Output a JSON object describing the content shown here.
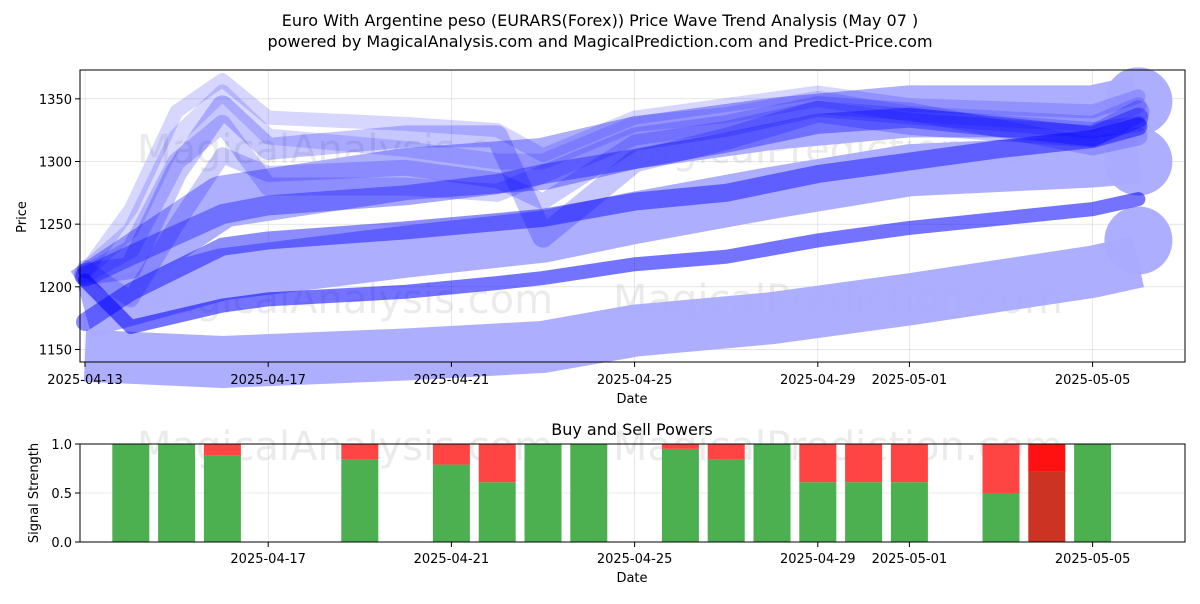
{
  "figure": {
    "title_line1": "Euro With Argentine peso (EURARS(Forex)) Price Wave Trend Analysis (May 07 )",
    "title_line2": "powered by MagicalAnalysis.com and MagicalPrediction.com and Predict-Price.com",
    "watermarks": [
      "MagicalAnalysis.com",
      "MagicalPrediction.com"
    ]
  },
  "chart_data": [
    {
      "type": "line",
      "title": "",
      "xlabel": "Date",
      "ylabel": "Price",
      "x_start": "2025-04-13",
      "xlim": [
        "2025-04-13",
        "2025-05-07"
      ],
      "ylim": [
        1140,
        1373
      ],
      "xticks": [
        "2025-04-13",
        "2025-04-17",
        "2025-04-21",
        "2025-04-25",
        "2025-04-29",
        "2025-05-01",
        "2025-05-05"
      ],
      "yticks": [
        1150,
        1200,
        1250,
        1300,
        1350
      ],
      "grid": true,
      "band_color": "#aaaaff",
      "wave_color": "#0000ff",
      "bands": [
        {
          "x": [
            "2025-04-13",
            "2025-04-16",
            "2025-04-20",
            "2025-04-23",
            "2025-04-25",
            "2025-04-28",
            "2025-05-01",
            "2025-05-05",
            "2025-05-06"
          ],
          "values": [
            1145,
            1140,
            1146,
            1152,
            1165,
            1175,
            1190,
            1212,
            1220
          ],
          "end_value": 1237
        },
        {
          "x": [
            "2025-04-13",
            "2025-04-16",
            "2025-04-20",
            "2025-04-23",
            "2025-04-25",
            "2025-04-28",
            "2025-05-01",
            "2025-05-05",
            "2025-05-06"
          ],
          "values": [
            1180,
            1210,
            1228,
            1240,
            1255,
            1275,
            1293,
            1300,
            1303
          ],
          "end_value": 1300
        },
        {
          "x": [
            "2025-04-13",
            "2025-04-16",
            "2025-04-20",
            "2025-04-23",
            "2025-04-25",
            "2025-04-28",
            "2025-05-01",
            "2025-05-05",
            "2025-05-06"
          ],
          "values": [
            1195,
            1268,
            1290,
            1298,
            1315,
            1330,
            1340,
            1340,
            1348
          ],
          "end_value": 1348
        }
      ],
      "series": [
        {
          "x": [
            "2025-04-13",
            "2025-04-14",
            "2025-04-16",
            "2025-04-17",
            "2025-04-20",
            "2025-04-22",
            "2025-04-23",
            "2025-04-25",
            "2025-04-27",
            "2025-04-29",
            "2025-05-01",
            "2025-05-05",
            "2025-05-06"
          ],
          "values": [
            1205,
            1168,
            1185,
            1190,
            1196,
            1203,
            1207,
            1218,
            1224,
            1237,
            1247,
            1262,
            1270
          ]
        },
        {
          "x": [
            "2025-04-13",
            "2025-04-14",
            "2025-04-16",
            "2025-04-17",
            "2025-04-20",
            "2025-04-23",
            "2025-04-25",
            "2025-04-27",
            "2025-04-29",
            "2025-05-01",
            "2025-05-03",
            "2025-05-05",
            "2025-05-06"
          ],
          "values": [
            1172,
            1196,
            1232,
            1237,
            1245,
            1255,
            1268,
            1275,
            1290,
            1300,
            1310,
            1318,
            1328
          ]
        },
        {
          "x": [
            "2025-04-13",
            "2025-04-14",
            "2025-04-16",
            "2025-04-17",
            "2025-04-20",
            "2025-04-22",
            "2025-04-23",
            "2025-04-25",
            "2025-04-27",
            "2025-04-29",
            "2025-05-01",
            "2025-05-05",
            "2025-05-06"
          ],
          "values": [
            1208,
            1225,
            1258,
            1265,
            1273,
            1282,
            1290,
            1302,
            1315,
            1330,
            1335,
            1320,
            1335
          ]
        },
        {
          "x": [
            "2025-04-13",
            "2025-04-14",
            "2025-04-15",
            "2025-04-16",
            "2025-04-17",
            "2025-04-20",
            "2025-04-22",
            "2025-04-23",
            "2025-04-25",
            "2025-04-27",
            "2025-04-29",
            "2025-05-01",
            "2025-05-05",
            "2025-05-06"
          ],
          "values": [
            1210,
            1215,
            1292,
            1344,
            1310,
            1320,
            1320,
            1240,
            1300,
            1318,
            1340,
            1330,
            1320,
            1340
          ]
        },
        {
          "x": [
            "2025-04-13",
            "2025-04-14",
            "2025-04-15",
            "2025-04-16",
            "2025-04-17",
            "2025-04-20",
            "2025-04-22",
            "2025-04-23",
            "2025-04-25",
            "2025-04-27",
            "2025-04-29",
            "2025-05-01",
            "2025-05-05",
            "2025-05-06"
          ],
          "values": [
            1215,
            1190,
            1250,
            1305,
            1290,
            1295,
            1285,
            1268,
            1315,
            1326,
            1342,
            1336,
            1325,
            1330
          ]
        },
        {
          "x": [
            "2025-04-13",
            "2025-04-14",
            "2025-04-15",
            "2025-04-16",
            "2025-04-17",
            "2025-04-20",
            "2025-04-22",
            "2025-04-23",
            "2025-04-25",
            "2025-04-27",
            "2025-04-29",
            "2025-05-01",
            "2025-05-05",
            "2025-05-06"
          ],
          "values": [
            1212,
            1262,
            1340,
            1365,
            1335,
            1330,
            1325,
            1305,
            1335,
            1345,
            1355,
            1345,
            1340,
            1352
          ]
        },
        {
          "x": [
            "2025-04-13",
            "2025-04-14",
            "2025-04-15",
            "2025-04-16",
            "2025-04-17",
            "2025-04-20",
            "2025-04-22",
            "2025-04-23",
            "2025-04-25",
            "2025-04-27",
            "2025-04-29",
            "2025-05-01",
            "2025-05-05",
            "2025-05-06"
          ],
          "values": [
            1210,
            1230,
            1300,
            1330,
            1280,
            1280,
            1275,
            1290,
            1320,
            1330,
            1345,
            1340,
            1312,
            1320
          ]
        },
        {
          "x": [
            "2025-04-13",
            "2025-04-14",
            "2025-04-15",
            "2025-04-16",
            "2025-04-17",
            "2025-04-20",
            "2025-04-22",
            "2025-04-23",
            "2025-04-25",
            "2025-04-27",
            "2025-04-29",
            "2025-05-01",
            "2025-05-05",
            "2025-05-06"
          ],
          "values": [
            1213,
            1245,
            1320,
            1355,
            1320,
            1310,
            1300,
            1300,
            1330,
            1337,
            1350,
            1338,
            1330,
            1345
          ]
        }
      ]
    },
    {
      "type": "bar",
      "title": "Buy and Sell Powers",
      "xlabel": "Date",
      "ylabel": "Signal Strength",
      "ylim": [
        0,
        1.0
      ],
      "yticks": [
        "0.0",
        "0.5",
        "1.0"
      ],
      "xticks": [
        "2025-04-17",
        "2025-04-21",
        "2025-04-25",
        "2025-04-29",
        "2025-05-01",
        "2025-05-05"
      ],
      "grid": true,
      "buy_color": "#4caf50",
      "sell_color": "#ff4444",
      "strong_buy_color": "#cc3322",
      "strong_sell_color": "#ff1111",
      "bars": [
        {
          "date": "2025-04-14",
          "buy": 1.0,
          "sell": 0.0
        },
        {
          "date": "2025-04-15",
          "buy": 1.0,
          "sell": 0.0
        },
        {
          "date": "2025-04-16",
          "buy": 0.88,
          "sell": 0.12
        },
        {
          "date": "2025-04-19",
          "buy": 0.84,
          "sell": 0.16
        },
        {
          "date": "2025-04-21",
          "buy": 0.79,
          "sell": 0.21
        },
        {
          "date": "2025-04-22",
          "buy": 0.61,
          "sell": 0.39
        },
        {
          "date": "2025-04-23",
          "buy": 1.0,
          "sell": 0.0
        },
        {
          "date": "2025-04-24",
          "buy": 1.0,
          "sell": 0.0
        },
        {
          "date": "2025-04-26",
          "buy": 0.95,
          "sell": 0.05
        },
        {
          "date": "2025-04-27",
          "buy": 0.84,
          "sell": 0.16
        },
        {
          "date": "2025-04-28",
          "buy": 1.0,
          "sell": 0.0
        },
        {
          "date": "2025-04-29",
          "buy": 0.61,
          "sell": 0.39
        },
        {
          "date": "2025-04-30",
          "buy": 0.61,
          "sell": 0.39
        },
        {
          "date": "2025-05-01",
          "buy": 0.61,
          "sell": 0.39
        },
        {
          "date": "2025-05-03",
          "buy": 0.5,
          "sell": 0.5
        },
        {
          "date": "2025-05-04",
          "buy": 0.72,
          "sell": 0.28,
          "strong": true
        },
        {
          "date": "2025-05-05",
          "buy": 1.0,
          "sell": 0.0
        }
      ]
    }
  ]
}
